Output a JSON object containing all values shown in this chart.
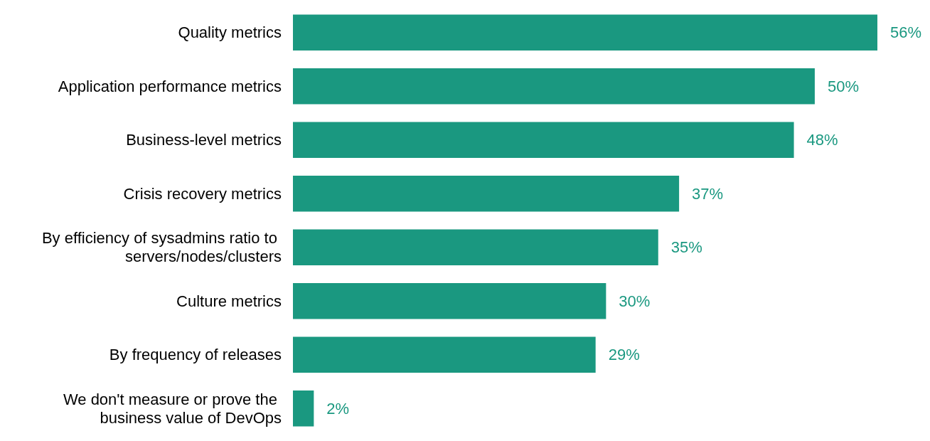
{
  "chart_data": {
    "type": "bar",
    "orientation": "horizontal",
    "categories": [
      "Quality metrics",
      "Application performance metrics",
      "Business-level metrics",
      "Crisis recovery metrics",
      "By efficiency of sysadmins ratio to servers/nodes/clusters",
      "Culture metrics",
      "By frequency of releases",
      "We don't measure or prove the business value of DevOps"
    ],
    "values": [
      56,
      50,
      48,
      37,
      35,
      30,
      29,
      2
    ],
    "value_labels": [
      "56%",
      "50%",
      "48%",
      "37%",
      "35%",
      "30%",
      "29%",
      "2%"
    ],
    "color": "#1a9880"
  }
}
